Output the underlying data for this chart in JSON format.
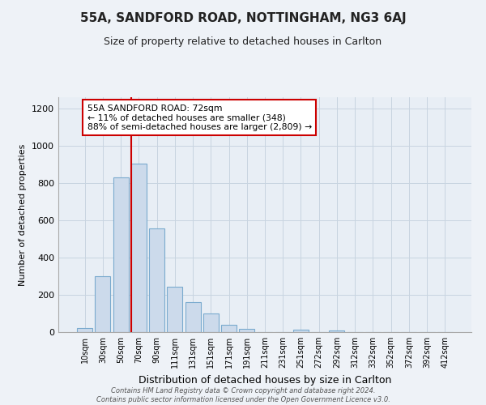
{
  "title": "55A, SANDFORD ROAD, NOTTINGHAM, NG3 6AJ",
  "subtitle": "Size of property relative to detached houses in Carlton",
  "xlabel": "Distribution of detached houses by size in Carlton",
  "ylabel": "Number of detached properties",
  "bar_labels": [
    "10sqm",
    "30sqm",
    "50sqm",
    "70sqm",
    "90sqm",
    "111sqm",
    "131sqm",
    "151sqm",
    "171sqm",
    "191sqm",
    "211sqm",
    "231sqm",
    "251sqm",
    "272sqm",
    "292sqm",
    "312sqm",
    "332sqm",
    "352sqm",
    "372sqm",
    "392sqm",
    "412sqm"
  ],
  "bar_heights": [
    20,
    300,
    830,
    905,
    555,
    245,
    160,
    100,
    37,
    18,
    0,
    0,
    15,
    0,
    10,
    0,
    0,
    0,
    0,
    0,
    0
  ],
  "bar_color": "#ccdaeb",
  "bar_edge_color": "#7aaace",
  "vline_x_index": 3,
  "vline_color": "#cc0000",
  "annotation_text": "55A SANDFORD ROAD: 72sqm\n← 11% of detached houses are smaller (348)\n88% of semi-detached houses are larger (2,809) →",
  "annotation_box_color": "#ffffff",
  "annotation_box_edge": "#cc0000",
  "ylim": [
    0,
    1260
  ],
  "yticks": [
    0,
    200,
    400,
    600,
    800,
    1000,
    1200
  ],
  "footnote": "Contains HM Land Registry data © Crown copyright and database right 2024.\nContains public sector information licensed under the Open Government Licence v3.0.",
  "bg_color": "#eef2f7",
  "plot_bg_color": "#e8eef5",
  "grid_color": "#c8d4e0"
}
